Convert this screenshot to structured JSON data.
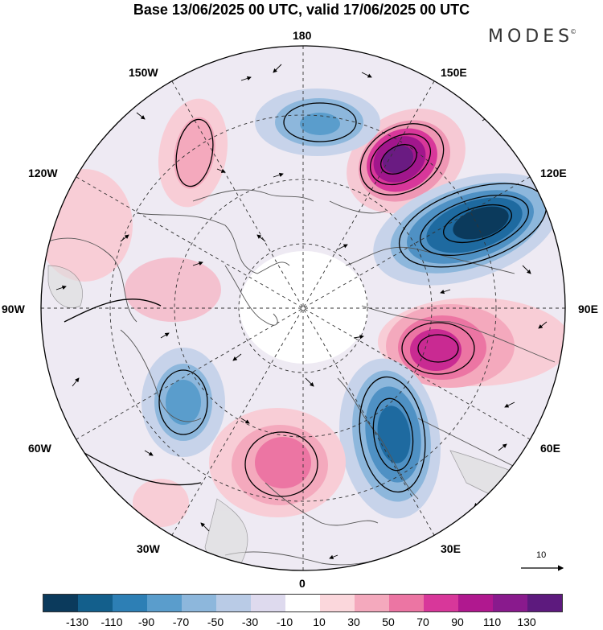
{
  "title": "Base 13/06/2025 00 UTC, valid 17/06/2025 00 UTC",
  "brand": "MODES",
  "brand_mark": "©",
  "longitude_labels": {
    "n180": "180",
    "w150": "150W",
    "e150": "150E",
    "w120": "120W",
    "e120": "120E",
    "w90": "90W",
    "e90": "90E",
    "w60": "60W",
    "e60": "60E",
    "w30": "30W",
    "e30": "30E",
    "s0": "0"
  },
  "reference_vector_label": "10",
  "colorbar": {
    "colors": [
      "#0b3a5c",
      "#135f8c",
      "#2d7fb5",
      "#5a9dcc",
      "#8db7dc",
      "#b9cbe6",
      "#dedaee",
      "#ffffff",
      "#fbd7dc",
      "#f4a9bd",
      "#ec75a3",
      "#d8379a",
      "#b0188f",
      "#891a8d",
      "#5d1a7e"
    ],
    "labels": [
      "-130",
      "-110",
      "-90",
      "-70",
      "-50",
      "-30",
      "-10",
      "10",
      "30",
      "50",
      "70",
      "90",
      "110",
      "130"
    ]
  },
  "anomaly_centers": [
    {
      "sign": "positive",
      "level": 130,
      "color": "#6a1b82"
    },
    {
      "sign": "negative",
      "level": -130,
      "color": "#0b3a5c"
    },
    {
      "sign": "positive",
      "level": 110,
      "color": "#a1168c"
    },
    {
      "sign": "negative",
      "level": -110,
      "color": "#135f8c"
    },
    {
      "sign": "positive",
      "level": 90,
      "color": "#c92a92"
    },
    {
      "sign": "negative",
      "level": -70,
      "color": "#5a9dcc"
    },
    {
      "sign": "negative",
      "level": -70,
      "color": "#5a9dcc"
    },
    {
      "sign": "positive",
      "level": 50,
      "color": "#f4a9bd"
    },
    {
      "sign": "positive",
      "level": 30,
      "color": "#fbd7dc"
    }
  ]
}
